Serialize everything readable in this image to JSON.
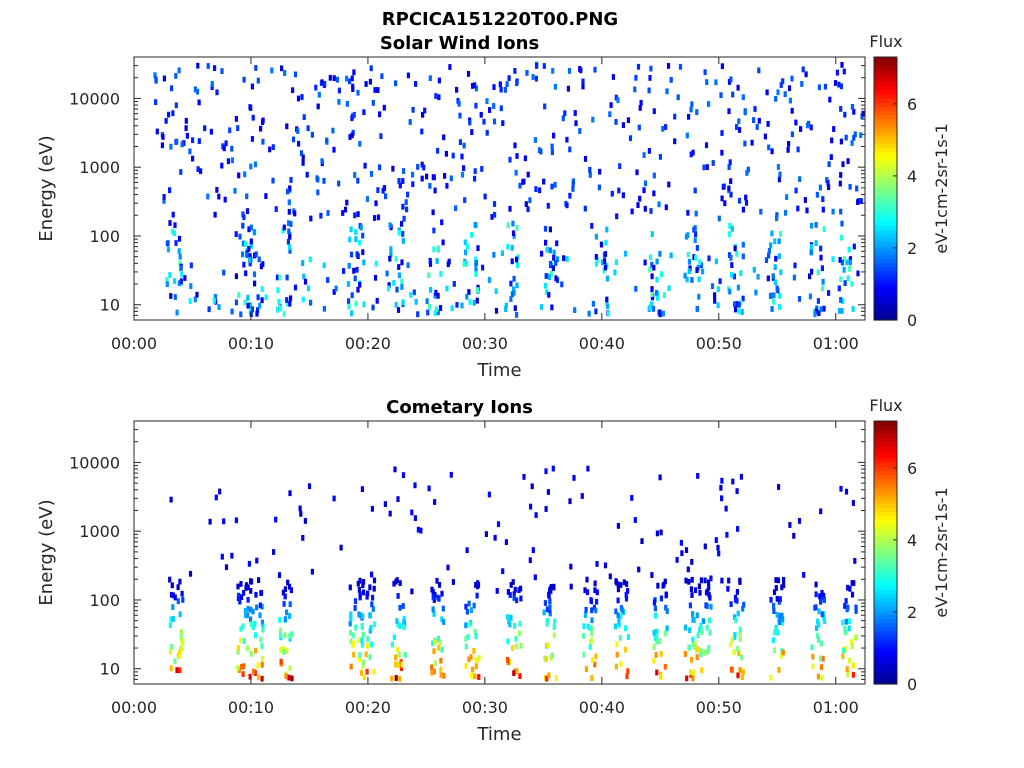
{
  "figure_title": "RPCICA151220T00.PNG",
  "colormap": "jet",
  "colors": {
    "axis": "#262626",
    "background": "#ffffff",
    "jet_stops": [
      "#00008f",
      "#0000ff",
      "#0080ff",
      "#00ffff",
      "#80ff80",
      "#ffff00",
      "#ff8000",
      "#ff0000",
      "#800000"
    ]
  },
  "chart_data": [
    {
      "type": "heatmap",
      "title": "Solar Wind Ions",
      "xlabel": "Time",
      "ylabel": "Energy (eV)",
      "x_ticks": [
        "00:00",
        "00:10",
        "00:20",
        "00:30",
        "00:40",
        "00:50",
        "01:00"
      ],
      "x_tick_minutes": [
        0,
        10,
        20,
        30,
        40,
        50,
        60
      ],
      "xlim_minutes": [
        0,
        62.5
      ],
      "y_scale": "log",
      "ylim": [
        6,
        40000
      ],
      "y_ticks": [
        "10",
        "100",
        "1000",
        "10000"
      ],
      "y_tick_values": [
        10,
        100,
        1000,
        10000
      ],
      "colorbar": {
        "title": "Flux",
        "label": "eV-1cm-2sr-1s-1",
        "ticks": [
          "0",
          "2",
          "4",
          "6"
        ],
        "tick_values": [
          0,
          2,
          4,
          6
        ],
        "range": [
          0,
          7.3
        ]
      },
      "band_minutes": [
        3.3,
        9.3,
        10.2,
        12.7,
        18.9,
        22.3,
        25.6,
        28.7,
        32.3,
        35.4,
        39.7,
        44.6,
        47.8,
        51.3,
        54.6,
        58.3,
        60.8
      ],
      "background_level": 1.2,
      "low_energy_level": 2.8
    },
    {
      "type": "heatmap",
      "title": "Cometary Ions",
      "xlabel": "Time",
      "ylabel": "Energy (eV)",
      "x_ticks": [
        "00:00",
        "00:10",
        "00:20",
        "00:30",
        "00:40",
        "00:50",
        "01:00"
      ],
      "x_tick_minutes": [
        0,
        10,
        20,
        30,
        40,
        50,
        60
      ],
      "xlim_minutes": [
        0,
        62.5
      ],
      "y_scale": "log",
      "ylim": [
        6,
        40000
      ],
      "y_ticks": [
        "10",
        "100",
        "1000",
        "10000"
      ],
      "y_tick_values": [
        10,
        100,
        1000,
        10000
      ],
      "colorbar": {
        "title": "Flux",
        "label": "eV-1cm-2sr-1s-1",
        "ticks": [
          "0",
          "2",
          "4",
          "6"
        ],
        "tick_values": [
          0,
          2,
          4,
          6
        ],
        "range": [
          0,
          7.3
        ]
      },
      "band_minutes": [
        3.5,
        9.3,
        10.3,
        12.9,
        18.9,
        19.9,
        22.5,
        25.9,
        28.8,
        32.4,
        35.4,
        38.9,
        41.6,
        44.9,
        47.6,
        48.6,
        51.4,
        54.9,
        58.4,
        61.0
      ],
      "background_level": 0.6,
      "peak_level": 7.0
    }
  ]
}
